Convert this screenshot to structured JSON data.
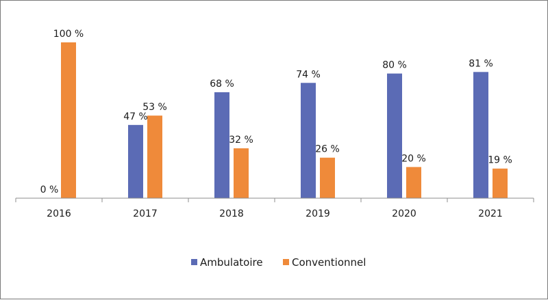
{
  "chart_data": {
    "type": "bar",
    "categories": [
      "2016",
      "2017",
      "2018",
      "2019",
      "2020",
      "2021"
    ],
    "series": [
      {
        "name": "Ambulatoire",
        "color": "#5b6bb5",
        "values": [
          0,
          47,
          68,
          74,
          80,
          81
        ],
        "labels": [
          "0 %",
          "47 %",
          "68 %",
          "74 %",
          "80 %",
          "81 %"
        ]
      },
      {
        "name": "Conventionnel",
        "color": "#ef8a3a",
        "values": [
          100,
          53,
          32,
          26,
          20,
          19
        ],
        "labels": [
          "100 %",
          "53 %",
          "32 %",
          "26 %",
          "20 %",
          "19 %"
        ]
      }
    ],
    "ylim": [
      0,
      100
    ],
    "grid": false,
    "legend_position": "bottom"
  }
}
